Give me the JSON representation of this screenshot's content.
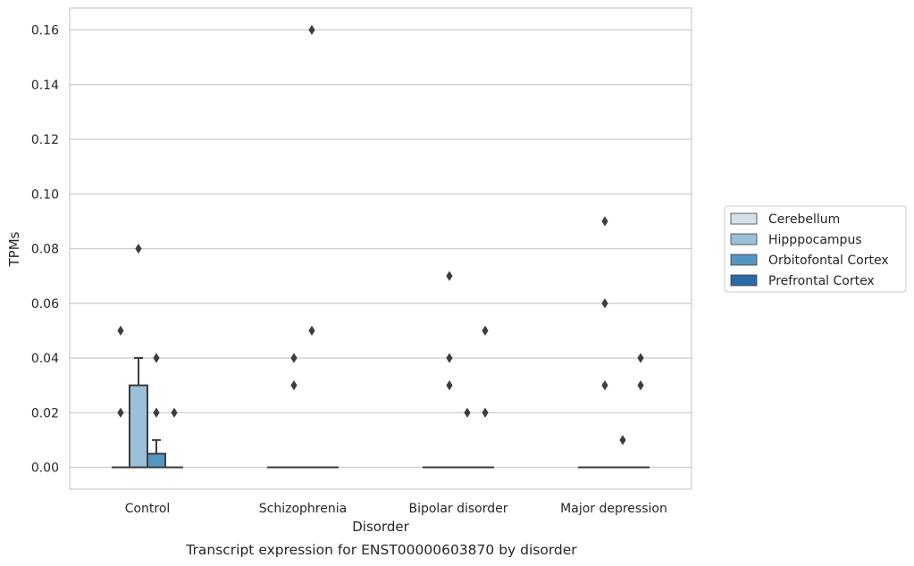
{
  "chart_data": {
    "type": "box",
    "title": "",
    "caption": "Transcript expression for ENST00000603870 by disorder",
    "xlabel": "Disorder",
    "ylabel": "TPMs",
    "ylim": [
      -0.008,
      0.168
    ],
    "yticks": [
      0.0,
      0.02,
      0.04,
      0.06,
      0.08,
      0.1,
      0.12,
      0.14,
      0.16
    ],
    "ytick_labels": [
      "0.00",
      "0.02",
      "0.04",
      "0.06",
      "0.08",
      "0.10",
      "0.12",
      "0.14",
      "0.16"
    ],
    "grid": "horizontal",
    "legend_position": "right",
    "categories": [
      "Control",
      "Schizophrenia",
      "Bipolar disorder",
      "Major depression"
    ],
    "series": [
      {
        "name": "Cerebellum",
        "color": "#d4e1ed",
        "boxes": [
          {
            "q1": 0,
            "median": 0,
            "q3": 0,
            "whisker_low": 0,
            "whisker_high": 0,
            "outliers": [
              0.05,
              0.02
            ]
          },
          {
            "q1": 0,
            "median": 0,
            "q3": 0,
            "whisker_low": 0,
            "whisker_high": 0,
            "outliers": []
          },
          {
            "q1": 0,
            "median": 0,
            "q3": 0,
            "whisker_low": 0,
            "whisker_high": 0,
            "outliers": []
          },
          {
            "q1": 0,
            "median": 0,
            "q3": 0,
            "whisker_low": 0,
            "whisker_high": 0,
            "outliers": []
          }
        ]
      },
      {
        "name": "Hipppocampus",
        "color": "#9bc0d9",
        "boxes": [
          {
            "q1": 0,
            "median": 0,
            "q3": 0.03,
            "whisker_low": 0,
            "whisker_high": 0.04,
            "outliers": [
              0.08
            ]
          },
          {
            "q1": 0,
            "median": 0,
            "q3": 0,
            "whisker_low": 0,
            "whisker_high": 0,
            "outliers": [
              0.04,
              0.03
            ]
          },
          {
            "q1": 0,
            "median": 0,
            "q3": 0,
            "whisker_low": 0,
            "whisker_high": 0,
            "outliers": [
              0.07,
              0.04,
              0.03
            ]
          },
          {
            "q1": 0,
            "median": 0,
            "q3": 0,
            "whisker_low": 0,
            "whisker_high": 0,
            "outliers": [
              0.09,
              0.06,
              0.03
            ]
          }
        ]
      },
      {
        "name": "Orbitofontal Cortex",
        "color": "#5496c2",
        "boxes": [
          {
            "q1": 0,
            "median": 0,
            "q3": 0.005,
            "whisker_low": 0,
            "whisker_high": 0.01,
            "outliers": [
              0.04,
              0.02
            ]
          },
          {
            "q1": 0,
            "median": 0,
            "q3": 0,
            "whisker_low": 0,
            "whisker_high": 0,
            "outliers": [
              0.16,
              0.05
            ]
          },
          {
            "q1": 0,
            "median": 0,
            "q3": 0,
            "whisker_low": 0,
            "whisker_high": 0,
            "outliers": [
              0.02
            ]
          },
          {
            "q1": 0,
            "median": 0,
            "q3": 0,
            "whisker_low": 0,
            "whisker_high": 0,
            "outliers": [
              0.01
            ]
          }
        ]
      },
      {
        "name": "Prefrontal Cortex",
        "color": "#2a6aa6",
        "boxes": [
          {
            "q1": 0,
            "median": 0,
            "q3": 0,
            "whisker_low": 0,
            "whisker_high": 0,
            "outliers": [
              0.02
            ]
          },
          {
            "q1": 0,
            "median": 0,
            "q3": 0,
            "whisker_low": 0,
            "whisker_high": 0,
            "outliers": []
          },
          {
            "q1": 0,
            "median": 0,
            "q3": 0,
            "whisker_low": 0,
            "whisker_high": 0,
            "outliers": [
              0.05,
              0.02
            ]
          },
          {
            "q1": 0,
            "median": 0,
            "q3": 0,
            "whisker_low": 0,
            "whisker_high": 0,
            "outliers": [
              0.04,
              0.03
            ]
          }
        ]
      }
    ]
  }
}
